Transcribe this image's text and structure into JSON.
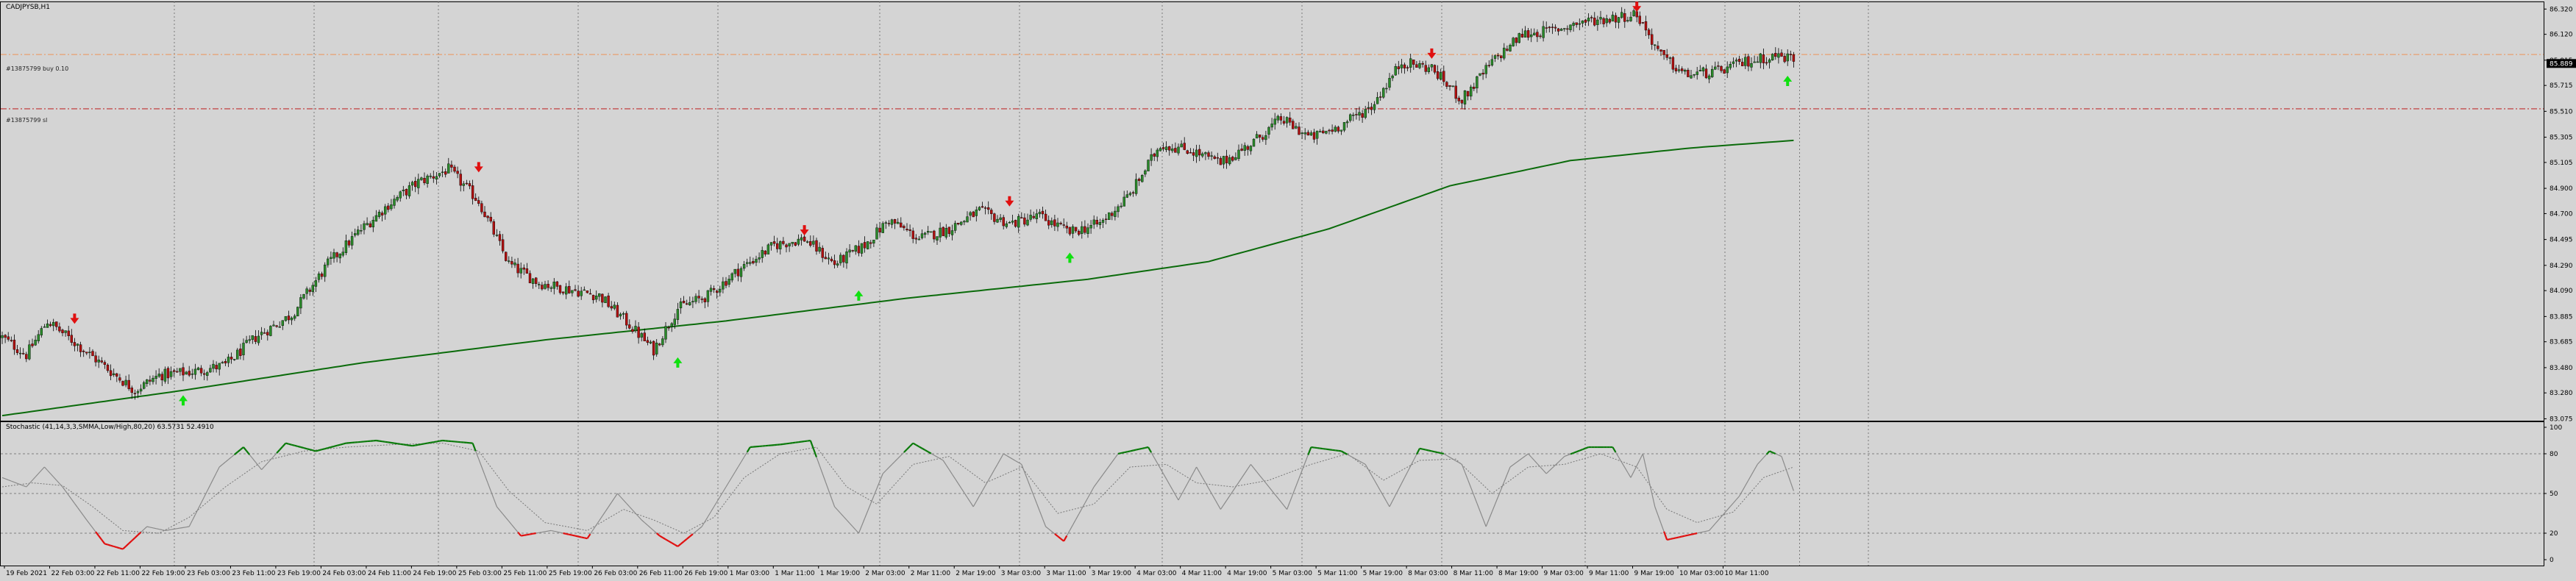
{
  "window": {
    "title": "CADJPYSB,H1"
  },
  "price_panel": {
    "hlines": [
      {
        "label": "#13875799 buy 0.10",
        "price": 85.96,
        "color": "#e8a070",
        "style": "dashdot"
      },
      {
        "label": "#13875799 sl",
        "price": 85.53,
        "color": "#c03030",
        "style": "dashdot"
      }
    ],
    "current_price_label": "85.889",
    "current_price": 85.889
  },
  "indicator_panel": {
    "title": "Stochastic (41,14,3,3,SMMA,Low/High,80,20) 63.5731 52.4910",
    "ylim": [
      0,
      100
    ],
    "levels": [
      80,
      50,
      20
    ],
    "tick_labels": [
      "100",
      "80",
      "50",
      "20",
      "0"
    ]
  },
  "chart_data": {
    "type": "candlestick",
    "symbol": "CADJPYSB",
    "timeframe": "H1",
    "ylim": [
      83.06,
      86.38
    ],
    "y_ticks": [
      86.32,
      86.12,
      85.915,
      85.715,
      85.51,
      85.305,
      85.105,
      84.9,
      84.7,
      84.495,
      84.29,
      84.09,
      83.885,
      83.685,
      83.48,
      83.28,
      83.075
    ],
    "y_tick_labels": [
      "86.320",
      "86.120",
      "85.915",
      "85.715",
      "85.510",
      "85.305",
      "85.105",
      "84.900",
      "84.700",
      "84.495",
      "84.290",
      "84.090",
      "83.885",
      "83.685",
      "83.480",
      "83.280",
      "83.075"
    ],
    "x_labels": [
      "19 Feb 2021",
      "22 Feb 03:00",
      "22 Feb 11:00",
      "22 Feb 19:00",
      "23 Feb 03:00",
      "23 Feb 11:00",
      "23 Feb 19:00",
      "24 Feb 03:00",
      "24 Feb 11:00",
      "24 Feb 19:00",
      "25 Feb 03:00",
      "25 Feb 11:00",
      "25 Feb 19:00",
      "26 Feb 03:00",
      "26 Feb 11:00",
      "26 Feb 19:00",
      "1 Mar 03:00",
      "1 Mar 11:00",
      "1 Mar 19:00",
      "2 Mar 03:00",
      "2 Mar 11:00",
      "2 Mar 19:00",
      "3 Mar 03:00",
      "3 Mar 11:00",
      "3 Mar 19:00",
      "4 Mar 03:00",
      "4 Mar 11:00",
      "4 Mar 19:00",
      "5 Mar 03:00",
      "5 Mar 11:00",
      "5 Mar 19:00",
      "8 Mar 03:00",
      "8 Mar 11:00",
      "8 Mar 19:00",
      "9 Mar 03:00",
      "9 Mar 11:00",
      "9 Mar 19:00",
      "10 Mar 03:00",
      "10 Mar 11:00"
    ],
    "close_path": [
      [
        0,
        83.72
      ],
      [
        8,
        83.58
      ],
      [
        15,
        83.85
      ],
      [
        24,
        83.68
      ],
      [
        36,
        83.45
      ],
      [
        44,
        83.3
      ],
      [
        52,
        83.42
      ],
      [
        64,
        83.45
      ],
      [
        74,
        83.5
      ],
      [
        84,
        83.72
      ],
      [
        96,
        83.9
      ],
      [
        108,
        84.3
      ],
      [
        118,
        84.55
      ],
      [
        128,
        84.77
      ],
      [
        138,
        84.95
      ],
      [
        148,
        85.05
      ],
      [
        158,
        84.8
      ],
      [
        168,
        84.3
      ],
      [
        178,
        84.15
      ],
      [
        188,
        84.1
      ],
      [
        198,
        84.05
      ],
      [
        208,
        83.82
      ],
      [
        216,
        83.62
      ],
      [
        224,
        83.95
      ],
      [
        234,
        84.05
      ],
      [
        244,
        84.25
      ],
      [
        256,
        84.45
      ],
      [
        266,
        84.5
      ],
      [
        276,
        84.3
      ],
      [
        286,
        84.45
      ],
      [
        294,
        84.65
      ],
      [
        304,
        84.5
      ],
      [
        314,
        84.58
      ],
      [
        324,
        84.72
      ],
      [
        334,
        84.62
      ],
      [
        344,
        84.68
      ],
      [
        354,
        84.55
      ],
      [
        364,
        84.62
      ],
      [
        374,
        84.85
      ],
      [
        384,
        85.25
      ],
      [
        394,
        85.2
      ],
      [
        404,
        85.1
      ],
      [
        414,
        85.25
      ],
      [
        424,
        85.45
      ],
      [
        434,
        85.3
      ],
      [
        444,
        85.4
      ],
      [
        454,
        85.55
      ],
      [
        464,
        85.9
      ],
      [
        474,
        85.85
      ],
      [
        484,
        85.6
      ],
      [
        494,
        85.9
      ],
      [
        504,
        86.12
      ],
      [
        514,
        86.15
      ],
      [
        524,
        86.22
      ],
      [
        534,
        86.25
      ],
      [
        542,
        86.28
      ],
      [
        550,
        85.95
      ],
      [
        558,
        85.8
      ],
      [
        568,
        85.82
      ],
      [
        578,
        85.9
      ],
      [
        588,
        85.95
      ],
      [
        594,
        85.93
      ]
    ],
    "sma_path": [
      [
        0,
        83.1
      ],
      [
        60,
        83.3
      ],
      [
        120,
        83.52
      ],
      [
        180,
        83.7
      ],
      [
        240,
        83.85
      ],
      [
        300,
        84.03
      ],
      [
        360,
        84.18
      ],
      [
        400,
        84.32
      ],
      [
        440,
        84.58
      ],
      [
        480,
        84.92
      ],
      [
        520,
        85.12
      ],
      [
        560,
        85.22
      ],
      [
        594,
        85.28
      ]
    ],
    "sell_signals": [
      {
        "bar": 24,
        "price": 83.85
      },
      {
        "bar": 158,
        "price": 85.05
      },
      {
        "bar": 266,
        "price": 84.55
      },
      {
        "bar": 334,
        "price": 84.78
      },
      {
        "bar": 474,
        "price": 85.95
      },
      {
        "bar": 542,
        "price": 86.32
      }
    ],
    "buy_signals": [
      {
        "bar": 60,
        "price": 83.32
      },
      {
        "bar": 224,
        "price": 83.62
      },
      {
        "bar": 284,
        "price": 84.15
      },
      {
        "bar": 354,
        "price": 84.45
      },
      {
        "bar": 592,
        "price": 85.85
      }
    ],
    "stochastic": {
      "main": [
        [
          0,
          62
        ],
        [
          8,
          55
        ],
        [
          14,
          70
        ],
        [
          20,
          55
        ],
        [
          28,
          30
        ],
        [
          34,
          12
        ],
        [
          40,
          8
        ],
        [
          48,
          25
        ],
        [
          54,
          22
        ],
        [
          62,
          25
        ],
        [
          72,
          70
        ],
        [
          80,
          85
        ],
        [
          86,
          68
        ],
        [
          94,
          88
        ],
        [
          104,
          82
        ],
        [
          114,
          88
        ],
        [
          124,
          90
        ],
        [
          136,
          86
        ],
        [
          146,
          90
        ],
        [
          156,
          88
        ],
        [
          164,
          40
        ],
        [
          172,
          18
        ],
        [
          182,
          22
        ],
        [
          194,
          16
        ],
        [
          204,
          50
        ],
        [
          212,
          30
        ],
        [
          218,
          18
        ],
        [
          224,
          10
        ],
        [
          232,
          25
        ],
        [
          240,
          55
        ],
        [
          248,
          85
        ],
        [
          258,
          87
        ],
        [
          268,
          90
        ],
        [
          276,
          40
        ],
        [
          284,
          20
        ],
        [
          292,
          65
        ],
        [
          302,
          88
        ],
        [
          312,
          75
        ],
        [
          322,
          40
        ],
        [
          332,
          80
        ],
        [
          338,
          72
        ],
        [
          346,
          25
        ],
        [
          352,
          14
        ],
        [
          362,
          55
        ],
        [
          370,
          80
        ],
        [
          380,
          85
        ],
        [
          390,
          45
        ],
        [
          396,
          70
        ],
        [
          404,
          38
        ],
        [
          414,
          72
        ],
        [
          420,
          55
        ],
        [
          426,
          38
        ],
        [
          434,
          85
        ],
        [
          444,
          82
        ],
        [
          452,
          72
        ],
        [
          460,
          40
        ],
        [
          470,
          84
        ],
        [
          478,
          80
        ],
        [
          484,
          72
        ],
        [
          492,
          25
        ],
        [
          500,
          70
        ],
        [
          506,
          80
        ],
        [
          512,
          65
        ],
        [
          518,
          78
        ],
        [
          526,
          85
        ],
        [
          534,
          85
        ],
        [
          540,
          62
        ],
        [
          544,
          80
        ],
        [
          548,
          40
        ],
        [
          552,
          15
        ],
        [
          558,
          18
        ],
        [
          566,
          22
        ],
        [
          576,
          48
        ],
        [
          582,
          72
        ],
        [
          586,
          82
        ],
        [
          590,
          78
        ],
        [
          594,
          52
        ]
      ],
      "signal": [
        [
          0,
          55
        ],
        [
          10,
          58
        ],
        [
          20,
          56
        ],
        [
          30,
          40
        ],
        [
          40,
          22
        ],
        [
          52,
          20
        ],
        [
          62,
          32
        ],
        [
          74,
          55
        ],
        [
          86,
          74
        ],
        [
          100,
          82
        ],
        [
          114,
          85
        ],
        [
          130,
          87
        ],
        [
          146,
          88
        ],
        [
          158,
          82
        ],
        [
          168,
          52
        ],
        [
          180,
          28
        ],
        [
          194,
          22
        ],
        [
          206,
          38
        ],
        [
          216,
          30
        ],
        [
          226,
          20
        ],
        [
          236,
          32
        ],
        [
          246,
          62
        ],
        [
          258,
          80
        ],
        [
          270,
          85
        ],
        [
          280,
          55
        ],
        [
          290,
          42
        ],
        [
          302,
          72
        ],
        [
          314,
          78
        ],
        [
          326,
          58
        ],
        [
          338,
          70
        ],
        [
          350,
          35
        ],
        [
          362,
          42
        ],
        [
          374,
          70
        ],
        [
          386,
          72
        ],
        [
          396,
          58
        ],
        [
          408,
          55
        ],
        [
          420,
          60
        ],
        [
          434,
          72
        ],
        [
          446,
          80
        ],
        [
          458,
          60
        ],
        [
          470,
          75
        ],
        [
          482,
          76
        ],
        [
          494,
          50
        ],
        [
          506,
          70
        ],
        [
          518,
          72
        ],
        [
          530,
          80
        ],
        [
          542,
          70
        ],
        [
          552,
          38
        ],
        [
          562,
          28
        ],
        [
          574,
          36
        ],
        [
          584,
          62
        ],
        [
          594,
          70
        ]
      ]
    }
  }
}
